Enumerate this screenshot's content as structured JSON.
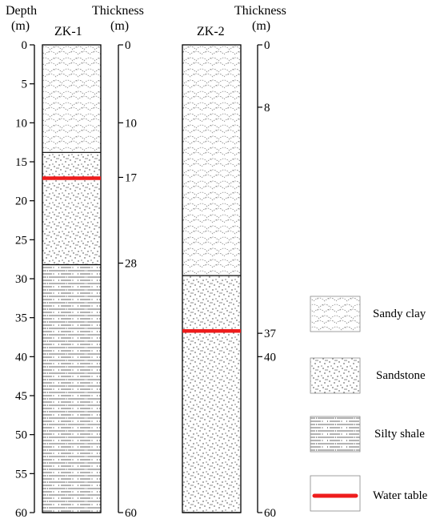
{
  "depth_axis": {
    "title": "Depth",
    "unit": "(m)",
    "ticks": [
      0,
      5,
      10,
      15,
      20,
      25,
      30,
      35,
      40,
      45,
      50,
      55,
      60
    ]
  },
  "boreholes": [
    {
      "name": "ZK-1",
      "thickness_title": "Thickness",
      "thickness_unit": "(m)",
      "thickness_ticks": [
        "0",
        "10",
        "17",
        "28",
        "60"
      ],
      "layers": [
        {
          "lithology": "Sandy clay",
          "top": 0,
          "bottom": 13.8
        },
        {
          "lithology": "Sandstone",
          "top": 13.8,
          "bottom": 28.2
        },
        {
          "lithology": "Silty shale",
          "top": 28.2,
          "bottom": 60
        }
      ],
      "water_table": 17.1
    },
    {
      "name": "ZK-2",
      "thickness_title": "Thickness",
      "thickness_unit": "(m)",
      "thickness_ticks": [
        "0",
        "8",
        "37",
        "40",
        "60"
      ],
      "layers": [
        {
          "lithology": "Sandy clay",
          "top": 0,
          "bottom": 29.6
        },
        {
          "lithology": "Sandstone",
          "top": 29.6,
          "bottom": 60
        }
      ],
      "water_table": 36.7
    }
  ],
  "legend": [
    {
      "key": "sandy_clay",
      "label": "Sandy clay"
    },
    {
      "key": "sandstone",
      "label": "Sandstone"
    },
    {
      "key": "silty_shale",
      "label": "Silty shale"
    },
    {
      "key": "water_table",
      "label": "Water table"
    }
  ],
  "colors": {
    "water_table": "#ee1c1c",
    "line": "#000000",
    "pattern": "#555555"
  }
}
